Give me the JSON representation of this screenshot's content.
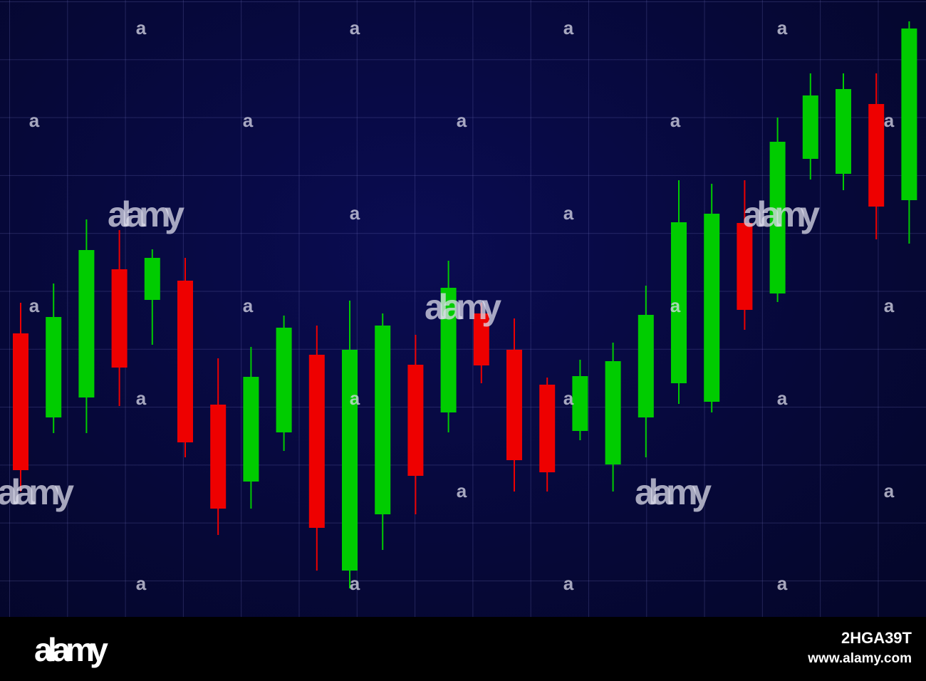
{
  "chart_data": {
    "type": "candlestick",
    "open": [
      398,
      280,
      308,
      488,
      445,
      472,
      298,
      190,
      259,
      368,
      65,
      144,
      354,
      287,
      426,
      375,
      326,
      261,
      214,
      280,
      328,
      302,
      553,
      454,
      643,
      622,
      720,
      585
    ],
    "high": [
      441,
      468,
      558,
      543,
      516,
      504,
      363,
      379,
      423,
      409,
      444,
      426,
      396,
      500,
      441,
      419,
      336,
      361,
      385,
      465,
      613,
      608,
      613,
      701,
      763,
      763,
      763,
      836
    ],
    "low": [
      176,
      258,
      258,
      296,
      382,
      224,
      115,
      152,
      233,
      65,
      40,
      94,
      144,
      259,
      328,
      176,
      176,
      248,
      176,
      224,
      299,
      287,
      403,
      442,
      614,
      599,
      530,
      524
    ],
    "close": [
      206,
      421,
      515,
      350,
      504,
      245,
      152,
      337,
      406,
      125,
      375,
      409,
      198,
      462,
      353,
      220,
      203,
      338,
      359,
      424,
      554,
      566,
      431,
      667,
      732,
      741,
      576,
      826
    ],
    "up_color": "#00cc00",
    "down_color": "#ee0000",
    "ylim": [
      0,
      866
    ],
    "grid": true
  },
  "watermark": "alamy",
  "watermark_small": "a",
  "footer": {
    "logo": "alamy",
    "image_id": "2HGA39T",
    "url": "www.alamy.com"
  }
}
